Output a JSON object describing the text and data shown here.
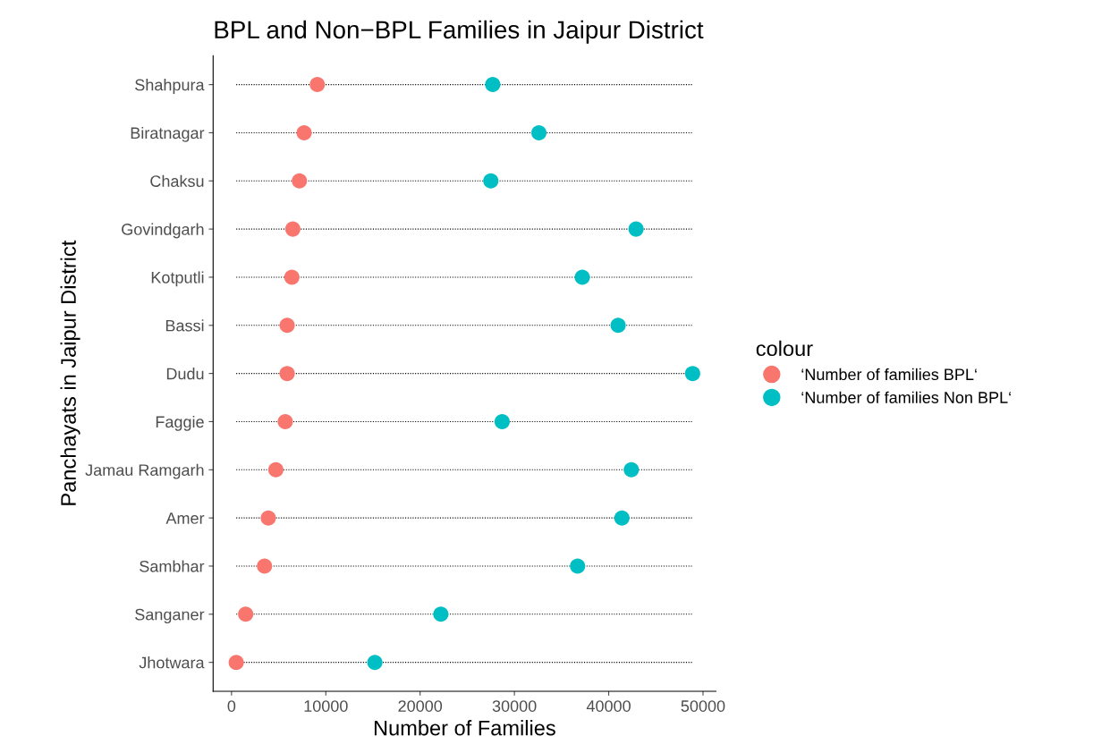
{
  "chart_data": {
    "type": "scatter",
    "title": "BPL and Non−BPL Families in Jaipur District",
    "xlabel": "Number of Families",
    "ylabel": "Panchayats in Jaipur District",
    "legend_title": "colour",
    "legend": "right",
    "marker": "circle",
    "orientation": "horizontal",
    "grid": false,
    "categories": [
      "Shahpura",
      "Biratnagar",
      "Chaksu",
      "Govindgarh",
      "Kotputli",
      "Bassi",
      "Dudu",
      "Faggie",
      "Jamau Ramgarh",
      "Amer",
      "Sambhar",
      "Sanganer",
      "Jhotwara"
    ],
    "series": [
      {
        "name": "‘Number of families BPL‘",
        "color": "#f8766d",
        "values": [
          9100,
          7700,
          7200,
          6500,
          6400,
          5900,
          5900,
          5700,
          4700,
          3900,
          3500,
          1500,
          500
        ]
      },
      {
        "name": "‘Number of families Non BPL‘",
        "color": "#00bfc4",
        "values": [
          27700,
          32600,
          27500,
          42900,
          37200,
          41000,
          48900,
          28700,
          42400,
          41400,
          36700,
          22200,
          15200
        ]
      }
    ],
    "xlim": [
      -1950,
      51370
    ],
    "xticks": [
      0,
      10000,
      20000,
      30000,
      40000,
      50000
    ]
  }
}
